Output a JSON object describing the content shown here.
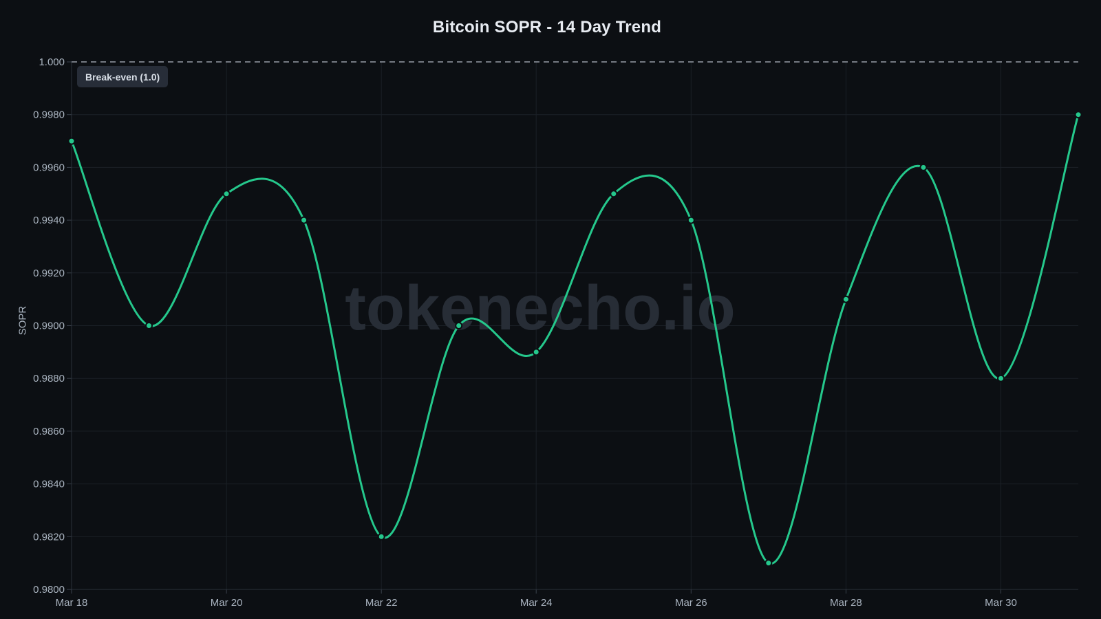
{
  "header": {
    "title": "Bitcoin SOPR - 14 Day Trend"
  },
  "watermark": {
    "text": "tokenecho.io"
  },
  "y_axis": {
    "title": "SOPR"
  },
  "chart_data": {
    "type": "line",
    "title": "Bitcoin SOPR - 14 Day Trend",
    "xlabel": "",
    "ylabel": "SOPR",
    "x": [
      "Mar 18",
      "Mar 19",
      "Mar 20",
      "Mar 21",
      "Mar 22",
      "Mar 23",
      "Mar 24",
      "Mar 25",
      "Mar 26",
      "Mar 27",
      "Mar 28",
      "Mar 29",
      "Mar 30",
      "Mar 31"
    ],
    "series": [
      {
        "name": "SOPR",
        "color": "#25c88c",
        "values": [
          0.997,
          0.99,
          0.995,
          0.994,
          0.982,
          0.99,
          0.989,
          0.995,
          0.994,
          0.981,
          0.991,
          0.996,
          0.988,
          0.998
        ]
      }
    ],
    "ylim": [
      0.98,
      1.0
    ],
    "ytick_values": [
      1.0,
      0.998,
      0.996,
      0.994,
      0.992,
      0.99,
      0.988,
      0.986,
      0.984,
      0.982,
      0.98
    ],
    "ytick_labels": [
      "1.000",
      "0.9980",
      "0.9960",
      "0.9940",
      "0.9920",
      "0.9900",
      "0.9880",
      "0.9860",
      "0.9840",
      "0.9820",
      "0.9800"
    ],
    "xtick_indices": [
      0,
      2,
      4,
      6,
      8,
      10,
      12
    ],
    "xtick_labels": [
      "Mar 18",
      "Mar 20",
      "Mar 22",
      "Mar 24",
      "Mar 26",
      "Mar 28",
      "Mar 30"
    ],
    "grid": true,
    "legend": false,
    "smoothing": "spline",
    "break_even_line": {
      "value": 1.0,
      "label": "Break-even (1.0)",
      "style": "dashed"
    }
  },
  "colors": {
    "background": "#0c0f13",
    "line": "#25c88c",
    "grid": "#1b2027",
    "axis": "#2a3039",
    "tick_mark": "#3a414c",
    "tick_text": "#a9b3bf",
    "title_text": "#e8ecf2",
    "dashed_line": "#a7aeb8",
    "watermark": "#272d36",
    "annotation_bg": "#272d38",
    "annotation_text": "#d8dee6"
  }
}
